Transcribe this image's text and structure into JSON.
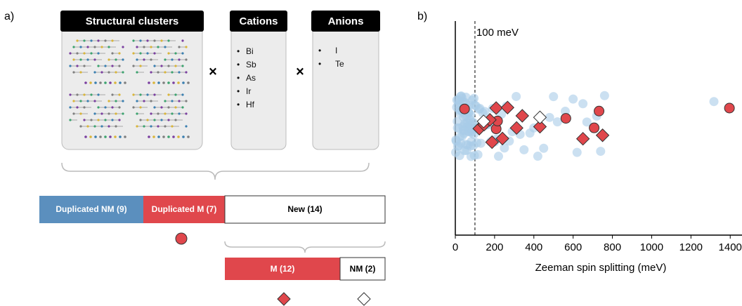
{
  "panel_a": {
    "label": "a)",
    "structural_clusters": {
      "title": "Structural clusters"
    },
    "cations": {
      "title": "Cations",
      "items": [
        "Bi",
        "Sb",
        "As",
        "Ir",
        "Hf"
      ]
    },
    "anions": {
      "title": "Anions",
      "items": [
        "I",
        "Te"
      ]
    },
    "operators": [
      "×",
      "×"
    ],
    "split": {
      "duplicated_nm": "Duplicated NM (9)",
      "duplicated_m": "Duplicated M (7)",
      "new": "New (14)",
      "m": "M (12)",
      "nm": "NM (2)"
    }
  },
  "chart_data": {
    "type": "scatter",
    "panel_label": "b)",
    "xlabel": "Zeeman spin splitting (meV)",
    "xlim": [
      0,
      1460
    ],
    "xticks": [
      0,
      200,
      400,
      600,
      800,
      1000,
      1200,
      1400
    ],
    "annotation": "100 meV",
    "threshold": 100,
    "series": [
      {
        "color": "#a9cbe8",
        "marker": "circle",
        "values": [
          2,
          5,
          8,
          10,
          12,
          15,
          18,
          20,
          22,
          25,
          28,
          30,
          33,
          35,
          38,
          40,
          42,
          45,
          48,
          50,
          52,
          55,
          58,
          60,
          62,
          65,
          68,
          70,
          72,
          75,
          78,
          80,
          82,
          85,
          88,
          90,
          92,
          95,
          98,
          100,
          3,
          7,
          11,
          14,
          17,
          21,
          24,
          27,
          31,
          34,
          37,
          41,
          44,
          47,
          51,
          54,
          57,
          61,
          64,
          67,
          71,
          74,
          77,
          81,
          84,
          87,
          91,
          94,
          97,
          105,
          110,
          115,
          120,
          125,
          130,
          140,
          150,
          160,
          170,
          180,
          190,
          200,
          210,
          220,
          235,
          250,
          260,
          275,
          290,
          310,
          330,
          350,
          380,
          400,
          420,
          450,
          480,
          500,
          520,
          560,
          600,
          620,
          650,
          670,
          720,
          740,
          760,
          1317
        ]
      },
      {
        "color": "#e0474c",
        "marker": "circle",
        "values": [
          47,
          208,
          215,
          563,
          707,
          732,
          1396
        ]
      },
      {
        "color": "#e0474c",
        "marker": "diamond",
        "values": [
          122,
          147,
          176,
          187,
          208,
          240,
          266,
          312,
          341,
          431,
          650,
          750
        ]
      },
      {
        "color": "#ffffff",
        "marker": "diamond",
        "values": [
          144,
          431
        ]
      }
    ]
  }
}
